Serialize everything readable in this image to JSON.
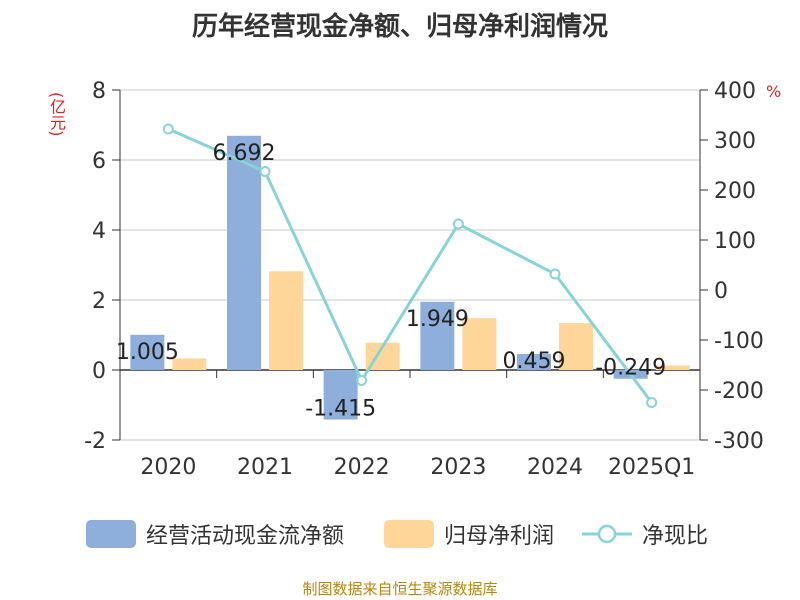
{
  "title": "历年经营现金净额、归母净利润情况",
  "source": "制图数据来自恒生聚源数据库",
  "units": {
    "left": "(亿元)",
    "right": "%"
  },
  "colors": {
    "bar1": "#8eaedc",
    "bar2": "#ffd699",
    "line": "#88d3d8",
    "grid": "#c8c8c8",
    "axis": "#333333"
  },
  "legend": {
    "items": [
      {
        "label": "经营活动现金流净额"
      },
      {
        "label": "归母净利润"
      },
      {
        "label": "净现比"
      }
    ]
  },
  "chart_data": {
    "type": "bar+line",
    "categories": [
      "2020",
      "2021",
      "2022",
      "2023",
      "2024",
      "2025Q1"
    ],
    "series": [
      {
        "name": "经营活动现金流净额",
        "type": "bar",
        "axis": "left",
        "values": [
          1.005,
          6.692,
          -1.415,
          1.949,
          0.459,
          -0.249
        ],
        "labels": [
          "1.005",
          "6.692",
          "-1.415",
          "1.949",
          "0.459",
          "-0.249"
        ]
      },
      {
        "name": "归母净利润",
        "type": "bar",
        "axis": "left",
        "values": [
          0.33,
          2.82,
          0.78,
          1.48,
          1.34,
          0.13
        ]
      },
      {
        "name": "净现比",
        "type": "line",
        "axis": "right",
        "values": [
          322,
          237,
          -181,
          132,
          32,
          -225
        ]
      }
    ],
    "y_left": {
      "min": -2,
      "max": 8,
      "ticks": [
        "-2",
        "0",
        "2",
        "4",
        "6",
        "8"
      ]
    },
    "y_right": {
      "min": -300,
      "max": 400,
      "ticks": [
        "-300",
        "-200",
        "-100",
        "0",
        "100",
        "200",
        "300",
        "400"
      ]
    },
    "grid": true,
    "legend_position": "bottom"
  }
}
